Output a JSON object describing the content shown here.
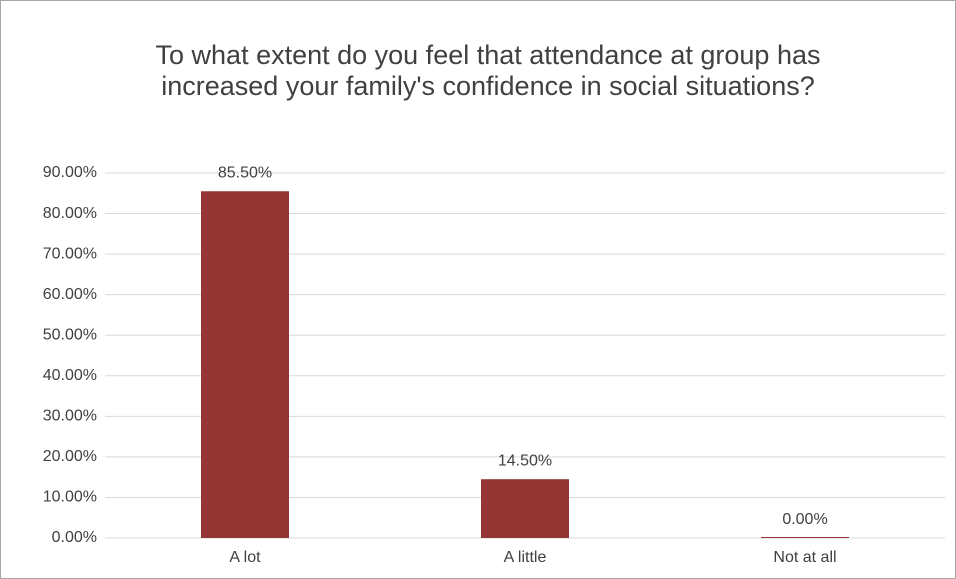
{
  "chart_data": {
    "type": "bar",
    "title": "To what extent do you feel that attendance at group has increased your family's confidence in social situations?",
    "categories": [
      "A lot",
      "A little",
      "Not at all"
    ],
    "values": [
      85.5,
      14.5,
      0
    ],
    "value_labels": [
      "85.50%",
      "14.50%",
      "0.00%"
    ],
    "color": "#943634",
    "ylim": [
      0,
      90
    ],
    "yticks": [
      {
        "value": 0,
        "label": "0.00%"
      },
      {
        "value": 10,
        "label": "10.00%"
      },
      {
        "value": 20,
        "label": "20.00%"
      },
      {
        "value": 30,
        "label": "30.00%"
      },
      {
        "value": 40,
        "label": "40.00%"
      },
      {
        "value": 50,
        "label": "50.00%"
      },
      {
        "value": 60,
        "label": "60.00%"
      },
      {
        "value": 70,
        "label": "70.00%"
      },
      {
        "value": 80,
        "label": "80.00%"
      },
      {
        "value": 90,
        "label": "90.00%"
      }
    ],
    "grid": true
  }
}
